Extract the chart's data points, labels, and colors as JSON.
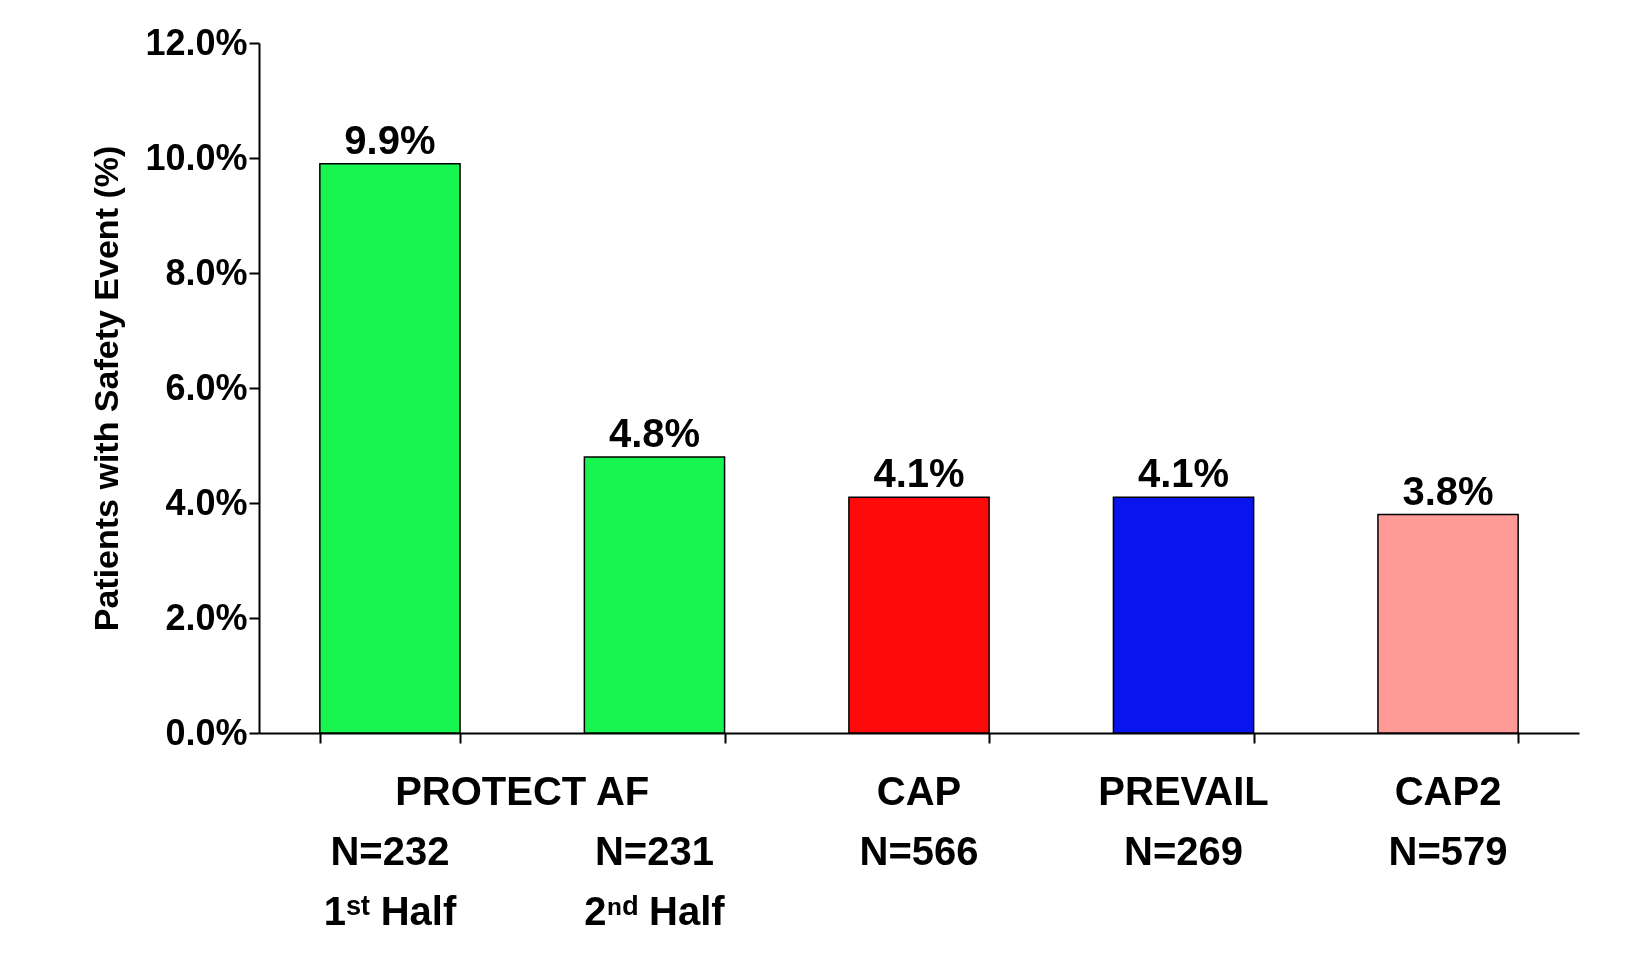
{
  "chart_data": {
    "type": "bar",
    "ylabel": "Patients with Safety Event (%)",
    "categories": [
      "N=232\n1ˢᵗ Half",
      "N=231\n2ⁿᵈ Half",
      "CAP\nN=566",
      "PREVAIL\nN=269",
      "CAP2\nN=579"
    ],
    "values": [
      9.9,
      4.8,
      4.1,
      4.1,
      3.8
    ],
    "colors": [
      "#19f550",
      "#19f550",
      "#ff0a0a",
      "#0a14ee",
      "#ff9a96"
    ],
    "value_labels": [
      "9.9%",
      "4.8%",
      "4.1%",
      "4.1%",
      "3.8%"
    ],
    "annotations": [
      "PROTECT AF"
    ],
    "ylim": [
      0,
      12
    ],
    "yticks": [
      {
        "value": 0,
        "label": "0.0%"
      },
      {
        "value": 2,
        "label": "2.0%"
      },
      {
        "value": 4,
        "label": "4.0%"
      },
      {
        "value": 6,
        "label": "6.0%"
      },
      {
        "value": 8,
        "label": "8.0%"
      },
      {
        "value": 10,
        "label": "10.0%"
      },
      {
        "value": 12,
        "label": "12.0%"
      }
    ],
    "grid": false
  }
}
